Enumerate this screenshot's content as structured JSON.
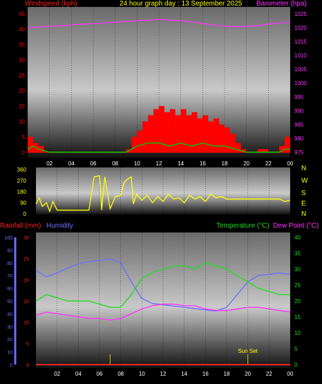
{
  "header": {
    "windspeed_label": "Windspeed (kph)",
    "title": "24 hour graph day : 13 September 2025",
    "barometer_label": "Barometer (hpa)"
  },
  "colors": {
    "wind": "#ff0000",
    "gust": "#00cc00",
    "barometer": "#ff33ff",
    "direction": "#ffff00",
    "humidity": "#6f6fff",
    "temperature": "#22dd22",
    "dewpoint": "#ff33ff",
    "rain": "#ff2020"
  },
  "chart_data": [
    {
      "type": "line",
      "name": "wind-barometer",
      "x_ticks": [
        "02",
        "04",
        "06",
        "08",
        "10",
        "12",
        "14",
        "16",
        "18",
        "20",
        "22",
        "00"
      ],
      "left_axis": {
        "label": "Windspeed (kph)",
        "range": [
          0,
          45
        ],
        "ticks": [
          "0",
          "5",
          "10",
          "15",
          "20",
          "25",
          "30",
          "35",
          "40",
          "45"
        ]
      },
      "right_axis": {
        "label": "Barometer (hpa)",
        "range": [
          975,
          1025
        ],
        "ticks": [
          "975",
          "980",
          "985",
          "990",
          "995",
          "1000",
          "1005",
          "1010",
          "1015",
          "1020",
          "1025"
        ]
      },
      "series": [
        {
          "name": "Barometer (hpa)",
          "x": [
            0,
            2,
            4,
            6,
            8,
            10,
            12,
            14,
            16,
            18,
            19.5,
            21,
            22,
            24
          ],
          "values": [
            1020.0,
            1020.5,
            1021.0,
            1021.5,
            1022.0,
            1022.5,
            1023.0,
            1022.5,
            1021.5,
            1020.5,
            1020.3,
            1020.8,
            1021.3,
            1022.0
          ]
        },
        {
          "name": "Windspeed",
          "x": [
            0,
            0.5,
            1,
            1.5,
            2,
            3,
            4,
            5,
            6,
            7,
            8,
            9,
            9.5,
            10,
            10.5,
            11,
            11.5,
            12,
            12.5,
            13,
            13.5,
            14,
            14.5,
            15,
            15.5,
            16,
            16.5,
            17,
            17.5,
            18,
            18.5,
            19,
            19.5,
            20,
            21,
            22,
            23,
            23.5,
            24
          ],
          "values": [
            5,
            3,
            2,
            0,
            0,
            0,
            0,
            0,
            0,
            0,
            0,
            1,
            5,
            7,
            10,
            12,
            14,
            15,
            13,
            14,
            12,
            14,
            12,
            13,
            11,
            12,
            10,
            11,
            9,
            8,
            6,
            3,
            1,
            0,
            1,
            0,
            2,
            5,
            3
          ]
        },
        {
          "name": "Gust",
          "x": [
            0,
            0.5,
            1,
            2,
            9,
            9.5,
            10,
            11,
            12,
            13,
            14,
            15,
            16,
            17,
            18,
            19,
            20,
            23,
            23.5,
            24
          ],
          "values": [
            1,
            2,
            1,
            0,
            0,
            1,
            2,
            3,
            3,
            2,
            3,
            2,
            3,
            2,
            2,
            1,
            0,
            0,
            1,
            1
          ]
        }
      ]
    },
    {
      "type": "line",
      "name": "wind-direction",
      "left_axis": {
        "range": [
          0,
          360
        ],
        "ticks": [
          "0",
          "90",
          "180",
          "270",
          "360"
        ]
      },
      "right_labels": [
        "N",
        "W",
        "S",
        "E",
        "N"
      ],
      "series": [
        {
          "name": "Direction",
          "x": [
            0,
            0.3,
            0.6,
            1,
            1.3,
            1.6,
            2,
            3,
            4,
            5,
            5.5,
            6,
            6.2,
            6.5,
            7,
            7.5,
            8,
            8.3,
            8.6,
            9,
            9.2,
            9.5,
            10,
            10.5,
            11,
            11.5,
            12,
            12.5,
            13,
            13.5,
            14,
            14.5,
            15,
            15.5,
            16,
            16.5,
            17,
            17.5,
            18,
            19,
            20,
            21,
            22,
            23,
            23.5,
            24
          ],
          "values": [
            80,
            130,
            60,
            90,
            20,
            100,
            30,
            30,
            30,
            30,
            300,
            310,
            30,
            300,
            40,
            140,
            150,
            250,
            280,
            300,
            80,
            160,
            110,
            150,
            90,
            140,
            100,
            160,
            120,
            130,
            90,
            150,
            120,
            140,
            100,
            160,
            130,
            140,
            120,
            120,
            120,
            120,
            120,
            120,
            100,
            110
          ]
        }
      ]
    },
    {
      "type": "line",
      "name": "rain-humidity-temperature",
      "labels": {
        "rainfall": "Rainfall (mm)",
        "humidity": "Humidity",
        "temperature": "Temperature (°C)",
        "dewpoint": "Dew Point (°C)",
        "annotation": "Sun Set"
      },
      "x_ticks": [
        "02",
        "04",
        "06",
        "08",
        "10",
        "12",
        "14",
        "16",
        "18",
        "20",
        "22",
        "00"
      ],
      "humidity_axis": {
        "range": [
          0,
          100
        ],
        "ticks": [
          "0",
          "10",
          "20",
          "30",
          "40",
          "50",
          "60",
          "70",
          "80",
          "90",
          "100"
        ]
      },
      "rain_axis": {
        "range": [
          0,
          30
        ],
        "ticks": [
          "0",
          "5",
          "10",
          "15",
          "20",
          "25",
          "30"
        ]
      },
      "temp_axis": {
        "range": [
          0,
          40
        ],
        "ticks": [
          "0",
          "5",
          "10",
          "15",
          "20",
          "25",
          "30",
          "35",
          "40"
        ]
      },
      "series": [
        {
          "name": "Humidity",
          "x": [
            0,
            1,
            2,
            3,
            4,
            5,
            6,
            7,
            8,
            9,
            10,
            11,
            12,
            13,
            14,
            15,
            16,
            17,
            18,
            19,
            20,
            21,
            22,
            23,
            24
          ],
          "values": [
            74,
            69,
            72,
            76,
            79,
            81,
            82,
            83,
            80,
            65,
            52,
            48,
            47,
            46,
            45,
            44,
            43,
            42,
            45,
            55,
            65,
            70,
            71,
            72,
            71
          ]
        },
        {
          "name": "Temperature (°C)",
          "x": [
            0,
            1,
            2,
            3,
            4,
            5,
            6,
            7,
            8,
            9,
            10,
            11,
            12,
            13,
            14,
            15,
            16,
            17,
            18,
            19,
            20,
            21,
            22,
            23,
            24
          ],
          "values": [
            20,
            22,
            21,
            20,
            20,
            20,
            19,
            18,
            18,
            22,
            27,
            29,
            30,
            31,
            31,
            30,
            32,
            31,
            30,
            28,
            26,
            24,
            23,
            22,
            22
          ]
        },
        {
          "name": "Dew Point (°C)",
          "x": [
            0,
            1,
            2,
            3,
            4,
            5,
            6,
            7,
            8,
            9,
            10,
            11,
            12,
            13,
            14,
            15,
            16,
            17,
            18,
            19,
            20,
            21,
            22,
            23,
            24
          ],
          "values": [
            15.5,
            16.5,
            16.0,
            15.5,
            15.0,
            14.5,
            14.5,
            14.0,
            14.5,
            16.0,
            17.5,
            18.5,
            19.0,
            19.0,
            18.5,
            18.5,
            17.5,
            17.0,
            17.0,
            17.5,
            18.0,
            18.0,
            17.5,
            17.0,
            16.5
          ]
        }
      ],
      "marker_x": [
        7,
        20
      ],
      "rain_values": [
        0
      ]
    }
  ]
}
